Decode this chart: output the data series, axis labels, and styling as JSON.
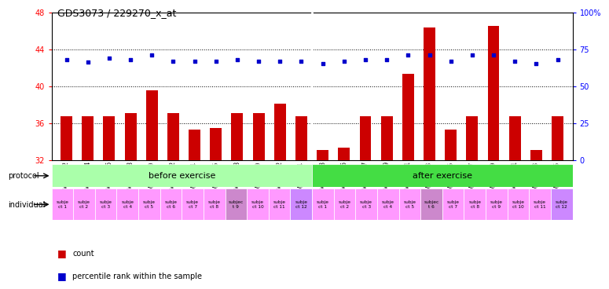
{
  "title": "GDS3073 / 229270_x_at",
  "samples": [
    "GSM214982",
    "GSM214984",
    "GSM214986",
    "GSM214988",
    "GSM214990",
    "GSM214992",
    "GSM214994",
    "GSM214996",
    "GSM214998",
    "GSM215000",
    "GSM215002",
    "GSM215004",
    "GSM214983",
    "GSM214985",
    "GSM214987",
    "GSM214989",
    "GSM214991",
    "GSM214993",
    "GSM214995",
    "GSM214997",
    "GSM214999",
    "GSM215001",
    "GSM215003",
    "GSM215005"
  ],
  "counts": [
    36.7,
    36.7,
    36.7,
    37.1,
    39.5,
    37.1,
    35.3,
    35.5,
    37.1,
    37.1,
    38.1,
    36.7,
    33.1,
    33.3,
    36.7,
    36.7,
    41.3,
    46.3,
    35.3,
    36.7,
    46.5,
    36.7,
    33.1,
    36.7
  ],
  "percentile_ranks_pct": [
    68,
    66,
    69,
    68,
    71,
    67,
    67,
    67,
    68,
    67,
    67,
    67,
    65,
    67,
    68,
    68,
    71,
    71,
    67,
    71,
    71,
    67,
    65,
    68
  ],
  "ylim_left": [
    32,
    48
  ],
  "ylim_right": [
    0,
    100
  ],
  "yticks_left": [
    32,
    36,
    40,
    44,
    48
  ],
  "yticks_right": [
    0,
    25,
    50,
    75,
    100
  ],
  "ytick_right_labels": [
    "0",
    "25",
    "50",
    "75",
    "100%"
  ],
  "bar_color": "#cc0000",
  "dot_color": "#0000cc",
  "bg_color": "#ffffff",
  "chart_bg": "#ffffff",
  "protocol_before_color": "#aaffaa",
  "protocol_after_color": "#44dd44",
  "individual_bg": "#ff99ff",
  "n_before": 12,
  "n_after": 12,
  "individuals_before": [
    "subje\nct 1",
    "subje\nct 2",
    "subje\nct 3",
    "subje\nct 4",
    "subje\nct 5",
    "subje\nct 6",
    "subje\nct 7",
    "subje\nct 8",
    "subjec\nt 9",
    "subje\nct 10",
    "subje\nct 11",
    "subje\nct 12"
  ],
  "individuals_after": [
    "subje\nct 1",
    "subje\nct 2",
    "subje\nct 3",
    "subje\nct 4",
    "subje\nct 5",
    "subjec\nt 6",
    "subje\nct 7",
    "subje\nct 8",
    "subje\nct 9",
    "subje\nct 10",
    "subje\nct 11",
    "subje\nct 12"
  ],
  "indiv_colors_before": [
    "#ff99ff",
    "#ff99ff",
    "#ff99ff",
    "#ff99ff",
    "#ff99ff",
    "#ff99ff",
    "#ff99ff",
    "#ff99ff",
    "#cc88cc",
    "#ff99ff",
    "#ff99ff",
    "#cc88ff"
  ],
  "indiv_colors_after": [
    "#ff99ff",
    "#ff99ff",
    "#ff99ff",
    "#ff99ff",
    "#ff99ff",
    "#cc88cc",
    "#ff99ff",
    "#ff99ff",
    "#ff99ff",
    "#ff99ff",
    "#ff99ff",
    "#cc88ff"
  ]
}
